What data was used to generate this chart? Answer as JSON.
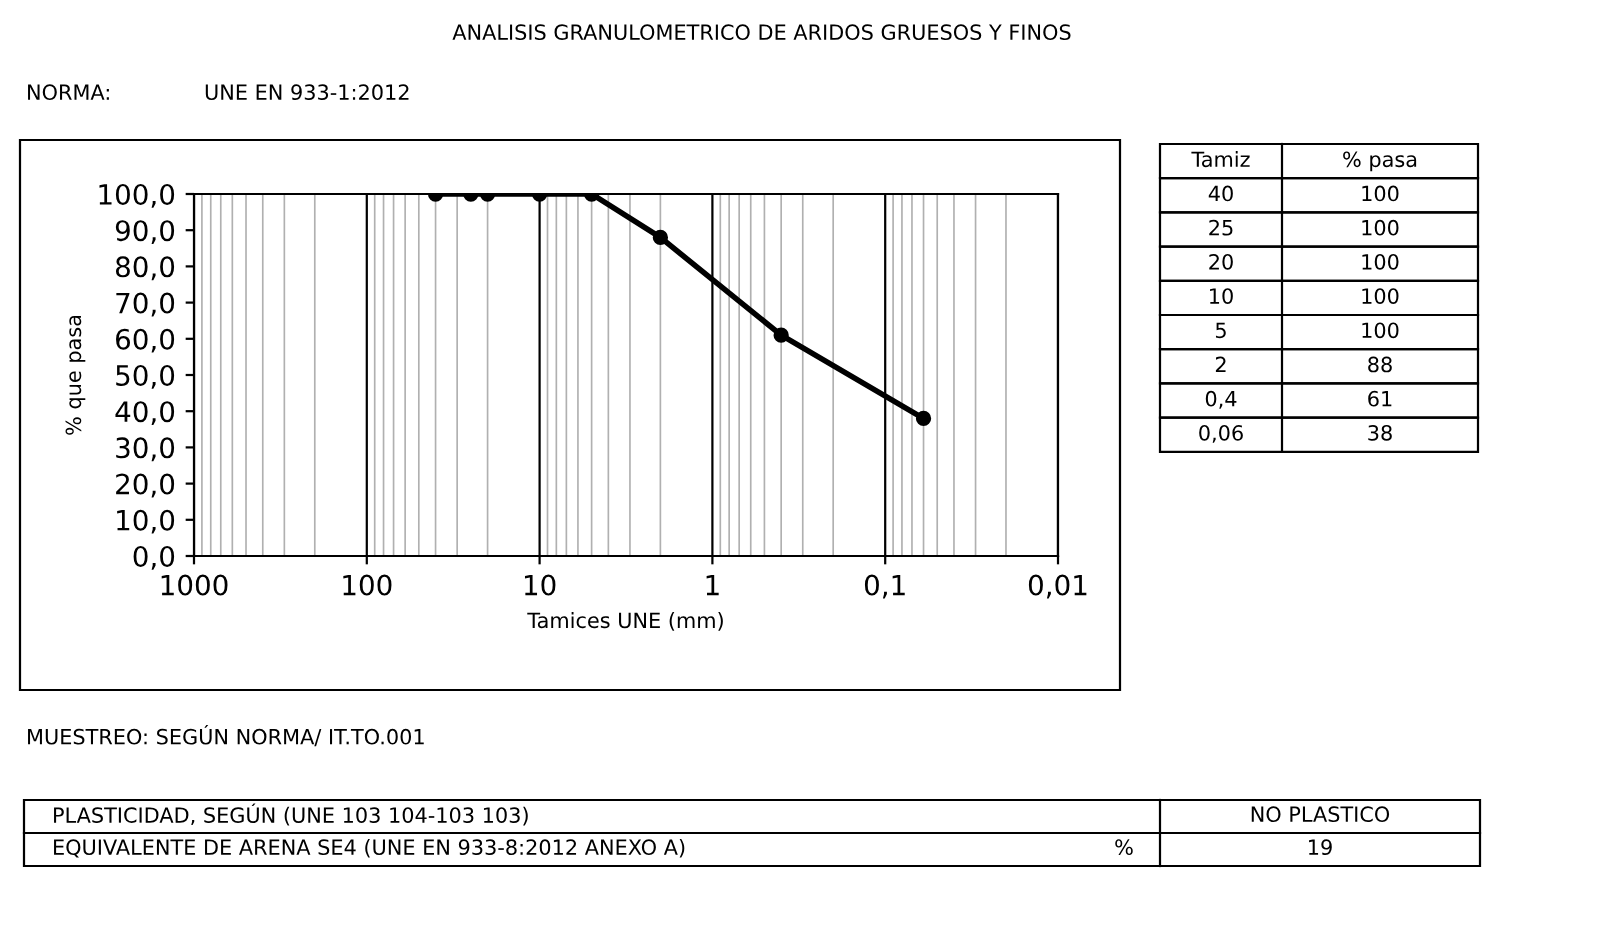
{
  "chart_data": {
    "type": "line",
    "title": "ANALISIS GRANULOMETRICO DE ARIDOS GRUESOS Y FINOS",
    "xlabel": "Tamices UNE (mm)",
    "ylabel": "% que pasa",
    "x": [
      40,
      25,
      20,
      10,
      5,
      2,
      0.4,
      0.06
    ],
    "series": [
      {
        "color": "#000000",
        "values": [
          100,
          100,
          100,
          100,
          100,
          88,
          61,
          38
        ]
      }
    ],
    "log": "x",
    "xlim": [
      1000,
      0.01
    ],
    "xticks": [
      1000,
      100,
      10,
      1,
      {
        "value": 0.1,
        "label": "0,1"
      },
      {
        "value": 0.01,
        "label": "0,01"
      }
    ],
    "ylim": [
      0,
      100
    ],
    "yticks": [
      {
        "value": 0,
        "label": "0,0"
      },
      {
        "value": 10,
        "label": "10,0"
      },
      {
        "value": 20,
        "label": "20,0"
      },
      {
        "value": 30,
        "label": "30,0"
      },
      {
        "value": 40,
        "label": "40,0"
      },
      {
        "value": 50,
        "label": "50,0"
      },
      {
        "value": 60,
        "label": "60,0"
      },
      {
        "value": 70,
        "label": "70,0"
      },
      {
        "value": 80,
        "label": "80,0"
      },
      {
        "value": 90,
        "label": "90,0"
      },
      {
        "value": 100,
        "label": "100,0"
      }
    ],
    "grid": "x",
    "marker": "circle",
    "line_style": "solid",
    "annotations": [
      "NORMA:",
      "UNE EN 933-1:2012",
      "Tamiz",
      "% pasa",
      "MUESTREO: SEGÚN NORMA/ IT.TO.001",
      "PLASTICIDAD, SEGÚN (UNE 103 104-103 103)",
      "NO PLASTICO",
      "EQUIVALENTE DE ARENA SE4 (UNE EN 933-8:2012 ANEXO A)",
      "%",
      "19",
      "40",
      "100",
      "25",
      "100",
      "20",
      "100",
      "10",
      "100",
      "5",
      "100",
      "2",
      "88",
      "0,4",
      "61",
      "0,06",
      "38"
    ]
  }
}
